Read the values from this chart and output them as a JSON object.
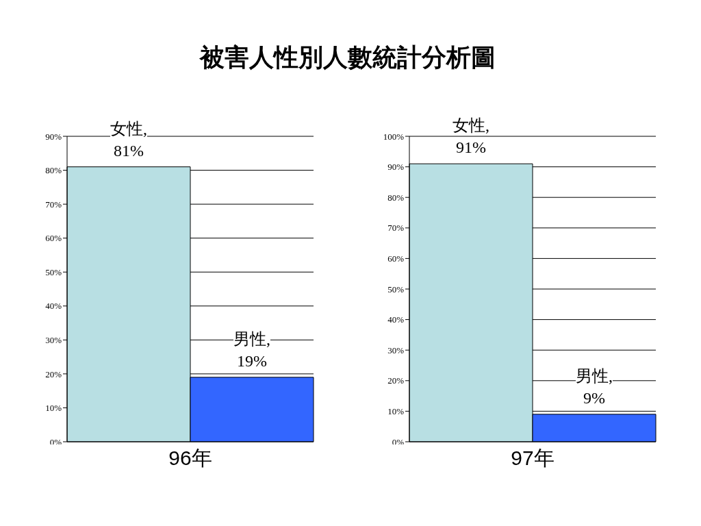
{
  "chart_data": [
    {
      "type": "bar",
      "title": "被害人性別人數統計分析圖",
      "xlabel": "96年",
      "categories": [
        null,
        null
      ],
      "values": [
        81,
        19
      ],
      "colors": [
        "#b8dfe3",
        "#3366ff"
      ],
      "value_labels": [
        "女性,\n81%",
        "男性,\n19%"
      ],
      "ylim": [
        0,
        90
      ],
      "yticks": [
        {
          "value": 0,
          "label": "0%"
        },
        {
          "value": 10,
          "label": "10%"
        },
        {
          "value": 20,
          "label": "20%"
        },
        {
          "value": 30,
          "label": "30%"
        },
        {
          "value": 40,
          "label": "40%"
        },
        {
          "value": 50,
          "label": "50%"
        },
        {
          "value": 60,
          "label": "60%"
        },
        {
          "value": 70,
          "label": "70%"
        },
        {
          "value": 80,
          "label": "80%"
        },
        {
          "value": 90,
          "label": "90%"
        }
      ],
      "grid": "y",
      "tick_labels": "y"
    },
    {
      "type": "bar",
      "xlabel": "97年",
      "categories": [
        null,
        null
      ],
      "values": [
        91,
        9
      ],
      "colors": [
        "#b8dfe3",
        "#3366ff"
      ],
      "value_labels": [
        "女性,\n91%",
        "男性,\n9%"
      ],
      "ylim": [
        0,
        100
      ],
      "yticks": [
        {
          "value": 0,
          "label": "0%"
        },
        {
          "value": 10,
          "label": "10%"
        },
        {
          "value": 20,
          "label": "20%"
        },
        {
          "value": 30,
          "label": "30%"
        },
        {
          "value": 40,
          "label": "40%"
        },
        {
          "value": 50,
          "label": "50%"
        },
        {
          "value": 60,
          "label": "60%"
        },
        {
          "value": 70,
          "label": "70%"
        },
        {
          "value": 80,
          "label": "80%"
        },
        {
          "value": 90,
          "label": "90%"
        },
        {
          "value": 100,
          "label": "100%"
        }
      ],
      "grid": "y",
      "tick_labels": "y"
    }
  ]
}
